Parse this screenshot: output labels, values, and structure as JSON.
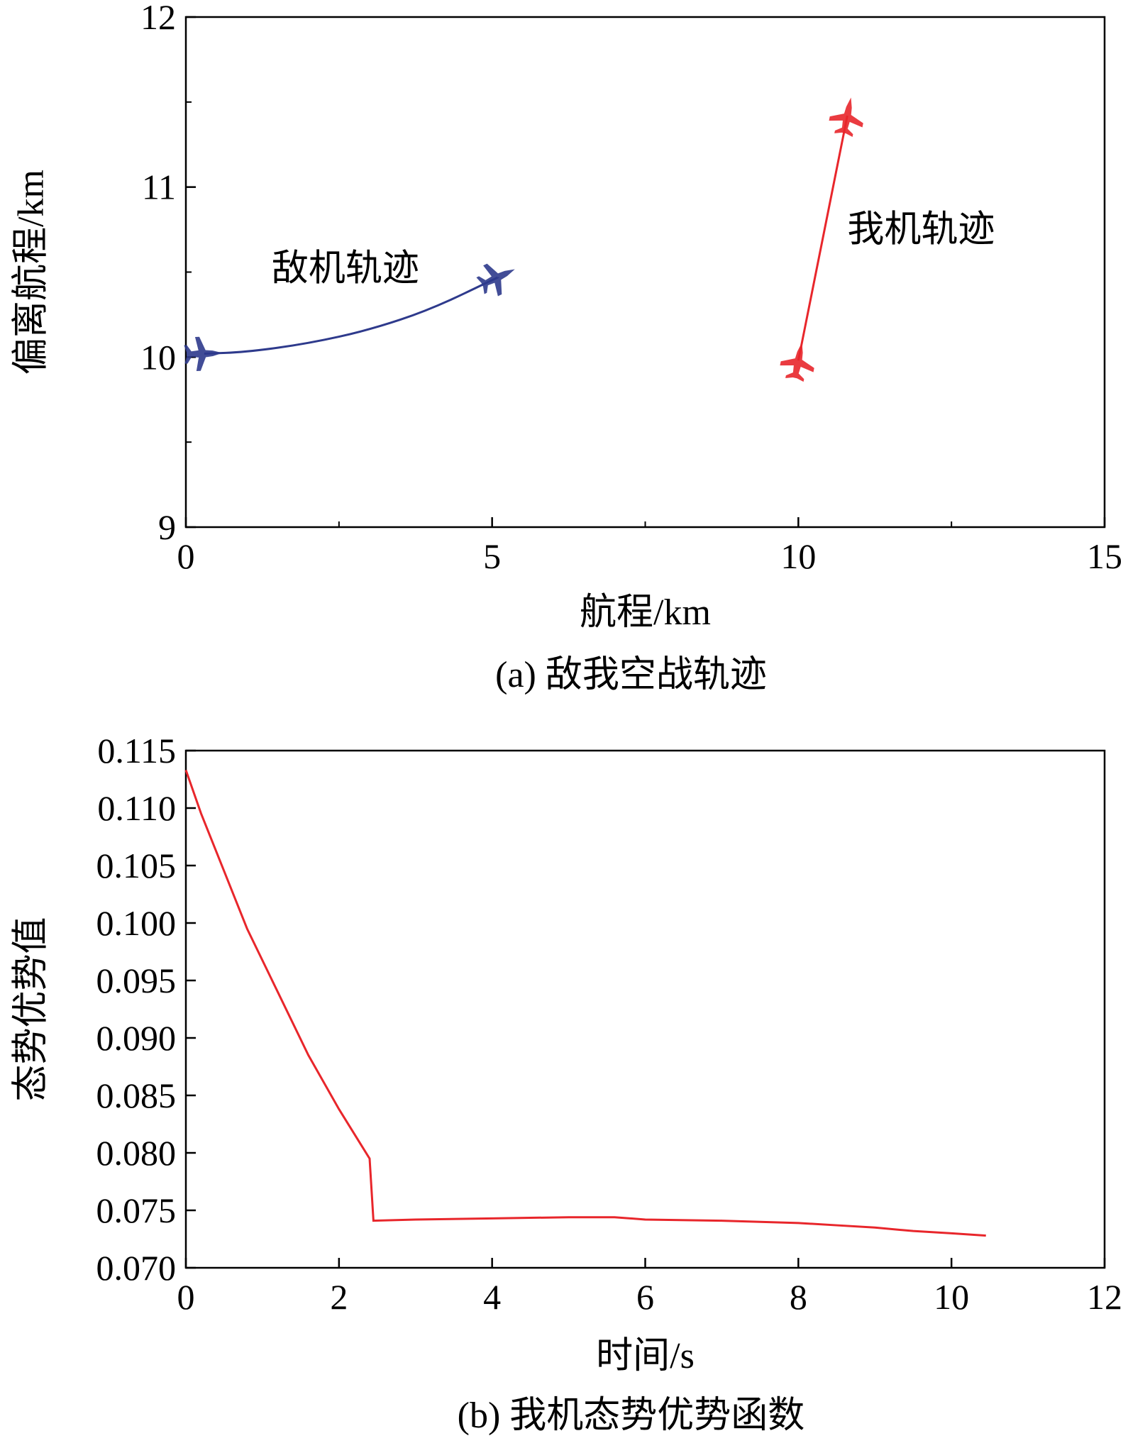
{
  "chart_data": [
    {
      "type": "line",
      "caption": "(a) 敌我空战轨迹",
      "xlabel": "航程/km",
      "ylabel": "偏离航程/km",
      "xlim": [
        0,
        15
      ],
      "ylim": [
        9,
        12
      ],
      "x_ticks": [
        0,
        5,
        10,
        15
      ],
      "y_ticks": [
        9,
        10,
        11,
        12
      ],
      "grid": false,
      "series": [
        {
          "name": "敌机轨迹",
          "color": "#2e3a8c",
          "marker": "aircraft-icon",
          "x": [
            0.3,
            1.0,
            2.0,
            3.0,
            4.0,
            5.1
          ],
          "y": [
            10.02,
            10.03,
            10.08,
            10.16,
            10.28,
            10.47
          ]
        },
        {
          "name": "我机轨迹",
          "color": "#e8262b",
          "marker": "aircraft-icon",
          "x": [
            10.0,
            10.8
          ],
          "y": [
            9.98,
            11.42
          ]
        }
      ]
    },
    {
      "type": "line",
      "caption": "(b) 我机态势优势函数",
      "xlabel": "时间/s",
      "ylabel": "态势优势值",
      "xlim": [
        0,
        12
      ],
      "ylim": [
        0.07,
        0.115
      ],
      "x_ticks": [
        0,
        2,
        4,
        6,
        8,
        10,
        12
      ],
      "y_ticks": [
        "0.070",
        "0.075",
        "0.080",
        "0.085",
        "0.090",
        "0.095",
        "0.100",
        "0.105",
        "0.110",
        "0.115"
      ],
      "grid": false,
      "series": [
        {
          "color": "#e8262b",
          "x": [
            0,
            0.2,
            0.5,
            0.8,
            1.2,
            1.6,
            2.0,
            2.4,
            2.45,
            3.0,
            4.0,
            5.0,
            5.6,
            6.0,
            7.0,
            7.5,
            8.0,
            8.5,
            9.0,
            9.5,
            10.0,
            10.45
          ],
          "y": [
            0.1133,
            0.1095,
            0.1045,
            0.0995,
            0.094,
            0.0885,
            0.0838,
            0.0795,
            0.0741,
            0.0742,
            0.0743,
            0.0744,
            0.0744,
            0.0742,
            0.0741,
            0.074,
            0.0739,
            0.0737,
            0.0735,
            0.0732,
            0.073,
            0.0728
          ]
        }
      ]
    }
  ]
}
